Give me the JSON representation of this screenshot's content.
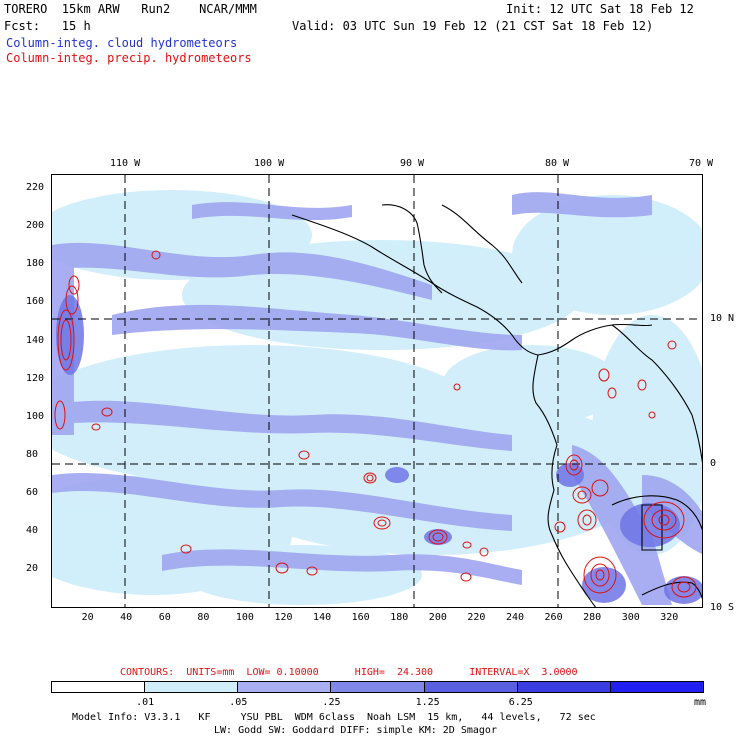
{
  "header": {
    "line1_left": "TORERO  15km ARW   Run2    NCAR/MMM",
    "line1_right": "Init: 12 UTC Sat 18 Feb 12",
    "line2_left": "Fcst:   15 h",
    "line2_right": "Valid: 03 UTC Sun 19 Feb 12 (21 CST Sat 18 Feb 12)",
    "legend_cloud": "Column-integ. cloud hydrometeors",
    "legend_precip": "Column-integ. precip. hydrometeors"
  },
  "map": {
    "lon_labels": [
      "110 W",
      "100 W",
      "90 W",
      "80 W",
      "70 W"
    ],
    "lat_labels": [
      "10 N",
      "0",
      "10 S"
    ],
    "y_ticks": [
      "220",
      "200",
      "180",
      "160",
      "140",
      "120",
      "100",
      "80",
      "60",
      "40",
      "20"
    ],
    "x_ticks": [
      "20",
      "40",
      "60",
      "80",
      "100",
      "120",
      "140",
      "160",
      "180",
      "200",
      "220",
      "240",
      "260",
      "280",
      "300",
      "320"
    ],
    "colors": {
      "cloud_light": "#cfeefa",
      "cloud_mid": "#9fa6f0",
      "cloud_dark": "#5d62e0",
      "precip": "#dd1111",
      "coast": "#000000"
    }
  },
  "contour_info": {
    "text": "CONTOURS:  UNITS=mm  LOW= 0.10000      HIGH=  24.300      INTERVAL=X  3.0000"
  },
  "colorbar": {
    "labels": [
      ".01",
      ".05",
      ".25",
      "1.25",
      "6.25"
    ],
    "unit": "mm",
    "colors": [
      "#ffffff",
      "#cfeefa",
      "#a9b0f2",
      "#8088ea",
      "#5b60e2",
      "#3a3ee0",
      "#2020f2"
    ]
  },
  "footer": {
    "line1": "Model Info: V3.3.1   KF     YSU PBL  WDM 6class  Noah LSM  15 km,   44 levels,   72 sec",
    "line2": "LW: Godd SW: Goddard DIFF: simple KM: 2D Smagor"
  }
}
